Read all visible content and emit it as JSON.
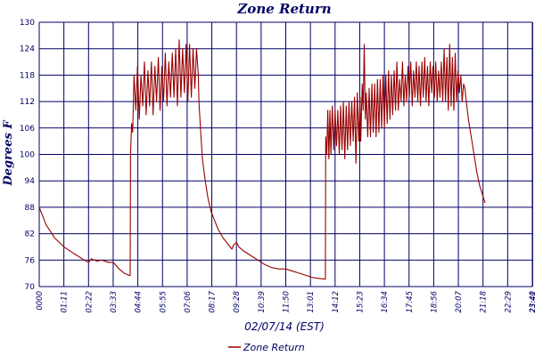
{
  "chart_data": {
    "type": "line",
    "title": "Zone Return",
    "xlabel": "02/07/14 (EST)",
    "ylabel": "Degrees F",
    "ylim": [
      70,
      130
    ],
    "yticks": [
      "130",
      "124",
      "118",
      "112",
      "106",
      "100",
      "94",
      "88",
      "82",
      "76",
      "70"
    ],
    "xticks": [
      "0000",
      "01:11",
      "02:22",
      "03:33",
      "04:44",
      "05:55",
      "07:06",
      "08:17",
      "09:28",
      "10:39",
      "11:50",
      "13:01",
      "14:12",
      "15:23",
      "16:34",
      "17:45",
      "18:56",
      "20:07",
      "21:18",
      "22:29",
      "23:40",
      "23:41"
    ],
    "x_unit": "minutes after 0000",
    "grid": true,
    "legend_position": "bottom-center",
    "colors": {
      "series": "#990000",
      "grid": "#000066",
      "text": "#000066"
    },
    "series": [
      {
        "name": "Zone Return",
        "points": [
          [
            0,
            88
          ],
          [
            20,
            84
          ],
          [
            45,
            81
          ],
          [
            71,
            79
          ],
          [
            100,
            77.5
          ],
          [
            130,
            76
          ],
          [
            142,
            75.5
          ],
          [
            150,
            76.3
          ],
          [
            165,
            75.8
          ],
          [
            180,
            76
          ],
          [
            200,
            75.5
          ],
          [
            213,
            75.5
          ],
          [
            230,
            74
          ],
          [
            245,
            73
          ],
          [
            260,
            72.5
          ],
          [
            262,
            72.5
          ],
          [
            263,
            100
          ],
          [
            266,
            107
          ],
          [
            269,
            105
          ],
          [
            273,
            118
          ],
          [
            278,
            110
          ],
          [
            283,
            120
          ],
          [
            288,
            108
          ],
          [
            293,
            118
          ],
          [
            298,
            111
          ],
          [
            303,
            121
          ],
          [
            308,
            109
          ],
          [
            313,
            119
          ],
          [
            318,
            111
          ],
          [
            323,
            121
          ],
          [
            328,
            109
          ],
          [
            333,
            120
          ],
          [
            338,
            112
          ],
          [
            343,
            122
          ],
          [
            348,
            110
          ],
          [
            353,
            120
          ],
          [
            358,
            112
          ],
          [
            363,
            123
          ],
          [
            368,
            111
          ],
          [
            373,
            121
          ],
          [
            378,
            113
          ],
          [
            383,
            123
          ],
          [
            388,
            113
          ],
          [
            393,
            124
          ],
          [
            398,
            111
          ],
          [
            403,
            126
          ],
          [
            408,
            113
          ],
          [
            413,
            124
          ],
          [
            418,
            114
          ],
          [
            423,
            125
          ],
          [
            428,
            112
          ],
          [
            433,
            125
          ],
          [
            438,
            113
          ],
          [
            443,
            124
          ],
          [
            448,
            115
          ],
          [
            453,
            124
          ],
          [
            458,
            118
          ],
          [
            460,
            112
          ],
          [
            465,
            105
          ],
          [
            470,
            99
          ],
          [
            478,
            94
          ],
          [
            486,
            90
          ],
          [
            495,
            87
          ],
          [
            505,
            85
          ],
          [
            515,
            83
          ],
          [
            530,
            81
          ],
          [
            545,
            79.5
          ],
          [
            555,
            78.5
          ],
          [
            560,
            79.5
          ],
          [
            568,
            80
          ],
          [
            575,
            79
          ],
          [
            590,
            78
          ],
          [
            610,
            77
          ],
          [
            630,
            76
          ],
          [
            650,
            75
          ],
          [
            670,
            74.3
          ],
          [
            690,
            74
          ],
          [
            710,
            74
          ],
          [
            730,
            73.5
          ],
          [
            750,
            73
          ],
          [
            770,
            72.5
          ],
          [
            790,
            72
          ],
          [
            810,
            71.8
          ],
          [
            822,
            71.7
          ],
          [
            824,
            71.7
          ],
          [
            825,
            104
          ],
          [
            828,
            100
          ],
          [
            831,
            110
          ],
          [
            834,
            99
          ],
          [
            837,
            110
          ],
          [
            840,
            100
          ],
          [
            844,
            111
          ],
          [
            848,
            101
          ],
          [
            852,
            110
          ],
          [
            856,
            102
          ],
          [
            860,
            110
          ],
          [
            864,
            100
          ],
          [
            868,
            111
          ],
          [
            872,
            101
          ],
          [
            876,
            112
          ],
          [
            880,
            99
          ],
          [
            884,
            111
          ],
          [
            888,
            101
          ],
          [
            892,
            112
          ],
          [
            896,
            102
          ],
          [
            900,
            112
          ],
          [
            904,
            103
          ],
          [
            908,
            113
          ],
          [
            912,
            98
          ],
          [
            916,
            114
          ],
          [
            920,
            103
          ],
          [
            924,
            113
          ],
          [
            926,
            103
          ],
          [
            930,
            116
          ],
          [
            933,
            110
          ],
          [
            936,
            125
          ],
          [
            939,
            108
          ],
          [
            942,
            114
          ],
          [
            946,
            104
          ],
          [
            950,
            115
          ],
          [
            954,
            104
          ],
          [
            958,
            116
          ],
          [
            962,
            105
          ],
          [
            966,
            116
          ],
          [
            970,
            104
          ],
          [
            974,
            117
          ],
          [
            978,
            105
          ],
          [
            982,
            117
          ],
          [
            986,
            106
          ],
          [
            990,
            118
          ],
          [
            994,
            106
          ],
          [
            998,
            118
          ],
          [
            1002,
            107
          ],
          [
            1006,
            119
          ],
          [
            1010,
            108
          ],
          [
            1014,
            118
          ],
          [
            1018,
            109
          ],
          [
            1022,
            119
          ],
          [
            1026,
            110
          ],
          [
            1030,
            121
          ],
          [
            1034,
            110
          ],
          [
            1038,
            117
          ],
          [
            1042,
            112
          ],
          [
            1046,
            121
          ],
          [
            1050,
            111
          ],
          [
            1054,
            118
          ],
          [
            1058,
            112
          ],
          [
            1062,
            120
          ],
          [
            1066,
            113
          ],
          [
            1070,
            121
          ],
          [
            1074,
            111
          ],
          [
            1078,
            119
          ],
          [
            1082,
            113
          ],
          [
            1086,
            121
          ],
          [
            1090,
            112
          ],
          [
            1094,
            120
          ],
          [
            1098,
            111
          ],
          [
            1102,
            121
          ],
          [
            1106,
            113
          ],
          [
            1110,
            122
          ],
          [
            1114,
            112
          ],
          [
            1118,
            120
          ],
          [
            1122,
            111
          ],
          [
            1126,
            121
          ],
          [
            1130,
            114
          ],
          [
            1134,
            120
          ],
          [
            1138,
            113
          ],
          [
            1142,
            121
          ],
          [
            1146,
            112
          ],
          [
            1150,
            119
          ],
          [
            1154,
            113
          ],
          [
            1158,
            121
          ],
          [
            1162,
            112
          ],
          [
            1166,
            124
          ],
          [
            1170,
            112
          ],
          [
            1174,
            122
          ],
          [
            1178,
            110
          ],
          [
            1182,
            125
          ],
          [
            1186,
            111
          ],
          [
            1190,
            122
          ],
          [
            1194,
            110
          ],
          [
            1198,
            123
          ],
          [
            1202,
            112
          ],
          [
            1206,
            119
          ],
          [
            1210,
            114
          ],
          [
            1214,
            118
          ],
          [
            1218,
            112
          ],
          [
            1222,
            116
          ],
          [
            1226,
            115
          ],
          [
            1230,
            112
          ],
          [
            1236,
            108
          ],
          [
            1244,
            104
          ],
          [
            1252,
            100
          ],
          [
            1260,
            96
          ],
          [
            1268,
            93
          ],
          [
            1276,
            91
          ],
          [
            1284,
            89
          ]
        ]
      }
    ]
  }
}
